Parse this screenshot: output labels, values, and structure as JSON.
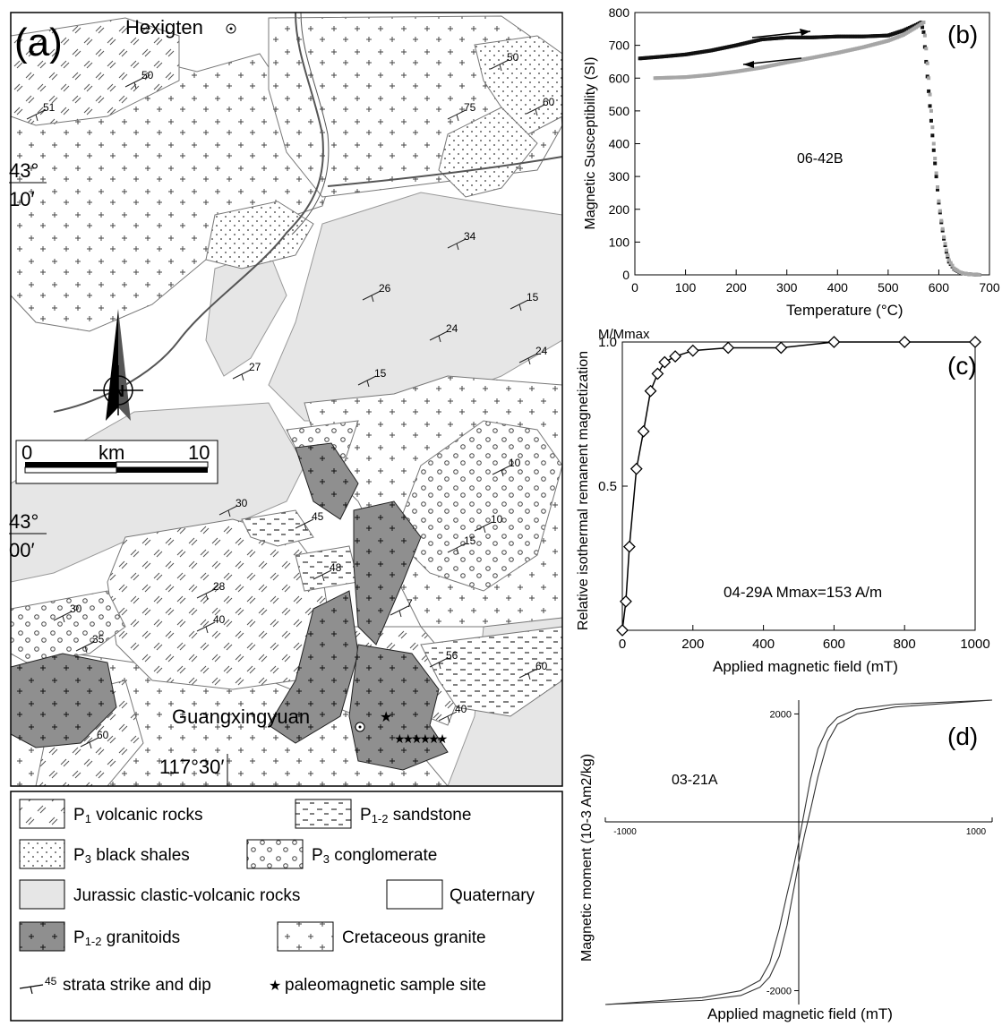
{
  "map": {
    "panel_label": "(a)",
    "towns": [
      "Hexigten",
      "Guangxingyuan"
    ],
    "lat_labels": [
      {
        "deg": "43°",
        "min": "10′"
      },
      {
        "deg": "43°",
        "min": "00′"
      }
    ],
    "lon_label": "117°30′",
    "north_label": "N",
    "scale": {
      "start": "0",
      "unit": "km",
      "end": "10"
    },
    "strike_dips": [
      "50",
      "51",
      "50",
      "60",
      "75",
      "34",
      "26",
      "15",
      "24",
      "27",
      "15",
      "24",
      "10",
      "10",
      "15",
      "30",
      "45",
      "48",
      "28",
      "7",
      "30",
      "40",
      "35",
      "56",
      "60",
      "40",
      "60"
    ]
  },
  "legend": {
    "items": [
      {
        "key": "p1-volcanic",
        "text": "volcanic rocks",
        "prefix": "P",
        "sub": "1"
      },
      {
        "key": "p12-sandstone",
        "text": "sandstone",
        "prefix": "P",
        "sub": "1-2"
      },
      {
        "key": "p3-shales",
        "text": "black shales",
        "prefix": "P",
        "sub": "3"
      },
      {
        "key": "p3-conglomerate",
        "text": "conglomerate",
        "prefix": "P",
        "sub": "3"
      },
      {
        "key": "jurassic",
        "text": "Jurassic clastic-volcanic rocks",
        "prefix": "",
        "sub": ""
      },
      {
        "key": "quaternary",
        "text": "Quaternary",
        "prefix": "",
        "sub": ""
      },
      {
        "key": "p12-granitoids",
        "text": "granitoids",
        "prefix": "P",
        "sub": "1-2"
      },
      {
        "key": "cretaceous",
        "text": "Cretaceous granite",
        "prefix": "",
        "sub": ""
      }
    ],
    "strike_text": "strata strike and dip",
    "strike_num": "45",
    "site_text": "paleomagnetic sample site"
  },
  "colors": {
    "granitoid": "#8f8f8f",
    "jurassic": "#e6e6e6",
    "heating": "#111111",
    "cooling": "#a6a6a6"
  },
  "chart_data": [
    {
      "panel": "(b)",
      "type": "scatter",
      "annotation": "06-42B",
      "xlabel": "Temperature (°C)",
      "ylabel": "Magnetic Susceptibility (SI)",
      "xlim": [
        0,
        700
      ],
      "ylim": [
        0,
        800
      ],
      "xticks": [
        0,
        100,
        200,
        300,
        400,
        500,
        600,
        700
      ],
      "yticks": [
        0,
        100,
        200,
        300,
        400,
        500,
        600,
        700,
        800
      ],
      "series": [
        {
          "x": [
            10,
            50,
            100,
            150,
            200,
            250,
            300,
            350,
            400,
            450,
            500,
            530,
            555,
            565,
            570,
            575,
            580,
            585,
            590,
            595,
            600,
            605,
            610,
            615,
            620,
            630,
            640,
            650,
            660,
            670,
            680
          ],
          "y": [
            660,
            665,
            672,
            684,
            700,
            718,
            724,
            724,
            727,
            727,
            730,
            745,
            762,
            770,
            740,
            650,
            560,
            470,
            380,
            300,
            220,
            160,
            110,
            70,
            40,
            18,
            8,
            4,
            2,
            1,
            0
          ]
        },
        {
          "x": [
            40,
            100,
            150,
            200,
            250,
            300,
            350,
            400,
            450,
            500,
            530,
            555,
            570,
            575,
            580,
            585,
            590,
            595,
            600,
            605,
            610,
            615,
            620,
            630,
            640,
            650,
            660,
            670,
            680
          ],
          "y": [
            600,
            603,
            610,
            620,
            632,
            648,
            662,
            677,
            694,
            714,
            732,
            755,
            770,
            690,
            600,
            500,
            400,
            310,
            225,
            165,
            115,
            75,
            45,
            20,
            9,
            4,
            2,
            1,
            0
          ]
        }
      ]
    },
    {
      "panel": "(c)",
      "type": "line",
      "annotation": "04-29A  Mmax=153 A/m",
      "xlabel": "Applied magnetic field (mT)",
      "ylabel": "Relative isothermal remanent magnetization",
      "ylabel_top": "M/Mmax",
      "xlim": [
        0,
        1000
      ],
      "ylim": [
        0,
        1.0
      ],
      "xticks": [
        0,
        200,
        400,
        600,
        800,
        1000
      ],
      "yticks": [
        "0.5",
        "1.0"
      ],
      "x": [
        0,
        10,
        20,
        40,
        60,
        80,
        100,
        120,
        150,
        200,
        300,
        450,
        600,
        800,
        1000
      ],
      "values": [
        0.0,
        0.1,
        0.29,
        0.56,
        0.69,
        0.83,
        0.89,
        0.93,
        0.95,
        0.97,
        0.98,
        0.98,
        1.0,
        1.0,
        1.0
      ]
    },
    {
      "panel": "(d)",
      "type": "line",
      "annotation": "03-21A",
      "xlabel": "Applied magnetic field (mT)",
      "ylabel": "Magnetic moment (10-3 Am2/kg)",
      "xlim": [
        -1000,
        1000
      ],
      "ylim": [
        -2200,
        2200
      ],
      "xticks": [
        "-1000",
        "1000"
      ],
      "yticks": [
        "2000",
        "-2000"
      ],
      "series": [
        {
          "x": [
            -1000,
            -500,
            -300,
            -200,
            -150,
            -100,
            -60,
            -30,
            0,
            30,
            60,
            100,
            150,
            200,
            300,
            500,
            1000
          ],
          "y": [
            -2200,
            -2100,
            -2000,
            -1850,
            -1600,
            -1100,
            -600,
            -250,
            150,
            600,
            1050,
            1500,
            1800,
            1950,
            2070,
            2140,
            2200
          ]
        },
        {
          "x": [
            -1000,
            -500,
            -300,
            -200,
            -150,
            -100,
            -60,
            -30,
            0,
            30,
            60,
            100,
            150,
            200,
            300,
            500,
            1000
          ],
          "y": [
            -2200,
            -2140,
            -2070,
            -1950,
            -1800,
            -1500,
            -1050,
            -600,
            -150,
            250,
            600,
            1100,
            1600,
            1850,
            2000,
            2100,
            2200
          ]
        }
      ]
    }
  ]
}
